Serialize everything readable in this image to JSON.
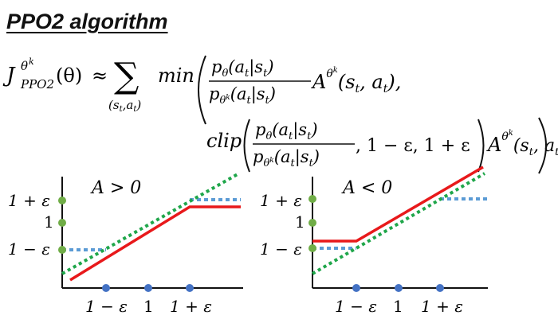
{
  "title": "PPO2 algorithm",
  "formula": {
    "lhs_J": "J",
    "lhs_sup": "θ",
    "lhs_sup_k": "k",
    "lhs_sub": "PPO2",
    "lhs_arg": "(θ)",
    "approx": "≈",
    "sum_symbol": "∑",
    "sum_sub": "(s",
    "sum_sub_t1": "t",
    "sum_sub_mid": ",a",
    "sum_sub_t2": "t",
    "sum_sub_end": ")",
    "min_text": "min",
    "ratio_num": "p",
    "ratio_num_sub": "θ",
    "ratio_num_arg": "(a",
    "ratio_num_arg_t": "t",
    "ratio_num_arg_mid": "|s",
    "ratio_num_arg_t2": "t",
    "ratio_num_arg_end": ")",
    "ratio_den": "p",
    "ratio_den_sub": "θ",
    "ratio_den_sub_k": "k",
    "ratio_den_arg": "(a",
    "ratio_den_arg_t": "t",
    "ratio_den_arg_mid": "|s",
    "ratio_den_arg_t2": "t",
    "ratio_den_arg_end": ")",
    "adv_A": "A",
    "adv_sup": "θ",
    "adv_sup_k": "k",
    "adv_arg": "(s",
    "adv_arg_t": "t",
    "adv_arg_mid": ", a",
    "adv_arg_t2": "t",
    "adv_arg_end": "),",
    "clip_text": "clip",
    "clip_tail": ", 1 − ε, 1 + ε",
    "adv2_arg_end": ")"
  },
  "plots": [
    {
      "condition": "A > 0",
      "y_ticks": [
        "1 + ε",
        "1",
        "1 − ε"
      ],
      "x_ticks": [
        "1 − ε",
        "1",
        "1 + ε"
      ]
    },
    {
      "condition": "A < 0",
      "y_ticks": [
        "1 + ε",
        "1",
        "1 − ε"
      ],
      "x_ticks": [
        "1 − ε",
        "1",
        "1 + ε"
      ]
    }
  ],
  "colors": {
    "red_line": "#e8191b",
    "green_dotted": "#1fa64a",
    "blue_dotted": "#5b9bd5",
    "green_dot": "#70ad47",
    "blue_dot": "#4472c4"
  }
}
